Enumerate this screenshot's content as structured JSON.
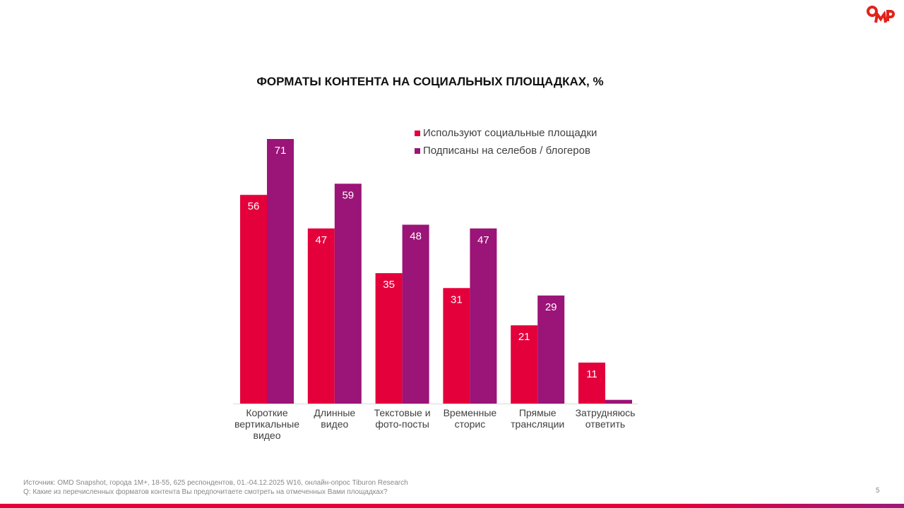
{
  "logo": "OMD",
  "page_number": "5",
  "footer": {
    "source": "Источник: OMD Snapshot, города 1M+, 18-55, 625  респондентов, 01.-04.12.2025 W16, онлайн-опрос Tiburon Research",
    "question": "Q: Какие из перечисленных форматов контента Вы предпочитаете смотреть на отмеченных Вами площадках?"
  },
  "chart_data": {
    "type": "bar",
    "title": "ФОРМАТЫ КОНТЕНТА НА СОЦИАЛЬНЫХ ПЛОЩАДКАХ, %",
    "categories": [
      [
        "Короткие",
        "вертикальные",
        "видео"
      ],
      [
        "Длинные",
        "видео"
      ],
      [
        "Текстовые и",
        "фото-посты"
      ],
      [
        "Временные",
        "сторис"
      ],
      [
        "Прямые",
        "трансляции"
      ],
      [
        "Затрудняюсь",
        "ответить"
      ]
    ],
    "series": [
      {
        "name": "Используют социальные площадки",
        "color": "#e4003b",
        "values": [
          56,
          47,
          35,
          31,
          21,
          11
        ],
        "labels": [
          "56",
          "47",
          "35",
          "31",
          "21",
          "11"
        ]
      },
      {
        "name": "Подписаны на селебов / блогеров",
        "color": "#9b1477",
        "values": [
          71,
          59,
          48,
          47,
          29,
          1
        ],
        "labels": [
          "71",
          "59",
          "48",
          "47",
          "29",
          ""
        ]
      }
    ],
    "ylim": [
      0,
      71
    ],
    "legend": "top-right",
    "grid": false
  }
}
